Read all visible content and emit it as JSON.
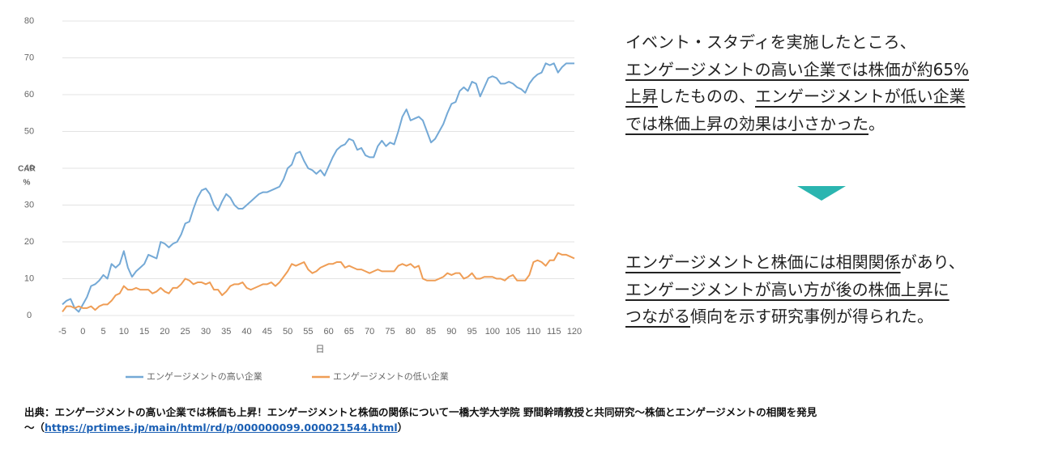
{
  "chart_data": {
    "type": "line",
    "x_label": "日",
    "y_label_lines": [
      "CAR",
      "%"
    ],
    "x": [
      -5,
      -4,
      -3,
      -2,
      -1,
      0,
      1,
      2,
      3,
      4,
      5,
      6,
      7,
      8,
      9,
      10,
      11,
      12,
      13,
      14,
      15,
      16,
      17,
      18,
      19,
      20,
      21,
      22,
      23,
      24,
      25,
      26,
      27,
      28,
      29,
      30,
      31,
      32,
      33,
      34,
      35,
      36,
      37,
      38,
      39,
      40,
      41,
      42,
      43,
      44,
      45,
      46,
      47,
      48,
      49,
      50,
      51,
      52,
      53,
      54,
      55,
      56,
      57,
      58,
      59,
      60,
      61,
      62,
      63,
      64,
      65,
      66,
      67,
      68,
      69,
      70,
      71,
      72,
      73,
      74,
      75,
      76,
      77,
      78,
      79,
      80,
      81,
      82,
      83,
      84,
      85,
      86,
      87,
      88,
      89,
      90,
      91,
      92,
      93,
      94,
      95,
      96,
      97,
      98,
      99,
      100,
      101,
      102,
      103,
      104,
      105,
      106,
      107,
      108,
      109,
      110,
      111,
      112,
      113,
      114,
      115,
      116,
      117,
      118,
      119,
      120
    ],
    "series": [
      {
        "name": "エンゲージメントの高い企業",
        "color": "#74a9d6",
        "values": [
          3,
          4,
          4.5,
          2,
          1,
          3,
          5,
          8,
          8.5,
          9.5,
          11,
          10,
          14,
          13,
          14,
          17.5,
          13,
          10.5,
          12,
          13,
          14,
          16.5,
          16,
          15.5,
          20,
          19.5,
          18.5,
          19.5,
          20,
          22,
          25,
          25.5,
          29,
          32,
          34,
          34.5,
          33,
          30,
          28.5,
          31,
          33,
          32,
          30,
          29,
          29,
          30,
          31,
          32,
          33,
          33.5,
          33.5,
          34,
          34.5,
          35,
          37,
          40,
          41,
          44,
          44.5,
          42,
          40,
          39.5,
          38.5,
          39.5,
          38,
          40.5,
          43,
          45,
          46,
          46.5,
          48,
          47.5,
          45,
          45.5,
          43.5,
          43,
          43,
          46,
          47.5,
          46,
          47,
          46.5,
          50,
          54,
          56,
          53,
          53.5,
          54,
          53,
          50,
          47,
          48,
          50,
          52,
          55,
          57.5,
          58,
          61,
          62,
          61,
          63.5,
          63,
          59.5,
          62,
          64.5,
          65,
          64.5,
          63,
          63,
          63.5,
          63,
          62,
          61.5,
          60.5,
          63,
          64.5,
          65.5,
          66,
          68.5,
          68,
          68.5,
          66,
          67.5,
          68.5,
          68.5,
          68.5
        ]
      },
      {
        "name": "エンゲージメントの低い企業",
        "color": "#ef9d55",
        "values": [
          1,
          2.5,
          2.5,
          2,
          2.5,
          2,
          2,
          2.5,
          1.5,
          2.5,
          3,
          3,
          4,
          5.5,
          6,
          8,
          7,
          7,
          7.5,
          7,
          7,
          7,
          6,
          6.5,
          7.5,
          6.5,
          6,
          7.5,
          7.5,
          8.5,
          10,
          9.5,
          8.5,
          9,
          9,
          8.5,
          9,
          7,
          7,
          5.5,
          6.5,
          8,
          8.5,
          8.5,
          9,
          7.5,
          7,
          7.5,
          8,
          8.5,
          8.5,
          9,
          8,
          9,
          10.5,
          12,
          14,
          13.5,
          14,
          14.5,
          12.5,
          11.5,
          12,
          13,
          13.5,
          14,
          14,
          14.5,
          14.5,
          13,
          13.5,
          13,
          12.5,
          12.5,
          12,
          11.5,
          12,
          12.5,
          12,
          12,
          12,
          12,
          13.5,
          14,
          13.5,
          14,
          13,
          13.5,
          10,
          9.5,
          9.5,
          9.5,
          10,
          10.5,
          11.5,
          11,
          11.5,
          11.5,
          10,
          10.5,
          11.5,
          10,
          10,
          10.5,
          10.5,
          10.5,
          10,
          10,
          9.5,
          10.5,
          11,
          9.5,
          9.5,
          9.5,
          11,
          14.5,
          15,
          14.5,
          13.5,
          15,
          15,
          17,
          16.5,
          16.5,
          16,
          15.5
        ]
      }
    ],
    "xlim": [
      -5,
      120
    ],
    "xticks": [
      -5,
      0,
      5,
      10,
      15,
      20,
      25,
      30,
      35,
      40,
      45,
      50,
      55,
      60,
      65,
      70,
      75,
      80,
      85,
      90,
      95,
      100,
      105,
      110,
      115,
      120
    ],
    "ylim": [
      0,
      80
    ],
    "yticks": [
      0,
      10,
      20,
      30,
      40,
      50,
      60,
      70,
      80
    ],
    "grid": true,
    "legend": "bottom"
  },
  "notes": [
    [
      [
        {
          "text": "イベント・スタディを実施したところ、",
          "underline": false
        }
      ],
      [
        {
          "text": "エンゲージメントの高い企業では株価が約65%",
          "underline": true
        }
      ],
      [
        {
          "text": "上昇",
          "underline": true
        },
        {
          "text": "したものの、",
          "underline": false
        },
        {
          "text": "エンゲージメントが低い企業",
          "underline": true
        }
      ],
      [
        {
          "text": "では株価上昇の効果は小さかった",
          "underline": true
        },
        {
          "text": "。",
          "underline": false
        }
      ]
    ],
    [
      [
        {
          "text": "エンゲージメントと株価には相関関係",
          "underline": true
        },
        {
          "text": "があり、",
          "underline": false
        }
      ],
      [
        {
          "text": "エンゲージメントが高い方が後の株価上昇に",
          "underline": true
        }
      ],
      [
        {
          "text": "つながる",
          "underline": true
        },
        {
          "text": "傾向を示す研究事例が得られた。",
          "underline": false
        }
      ]
    ]
  ],
  "footer": {
    "line1": "出典：エンゲージメントの高い企業では株価も上昇！エンゲージメントと株価の関係について一橋大学大学院 野間幹晴教授と共同研究～株価とエンゲージメントの相関を発見",
    "prefix": "～（",
    "link": "https://prtimes.jp/main/html/rd/p/000000099.000021544.html",
    "suffix": "）"
  }
}
